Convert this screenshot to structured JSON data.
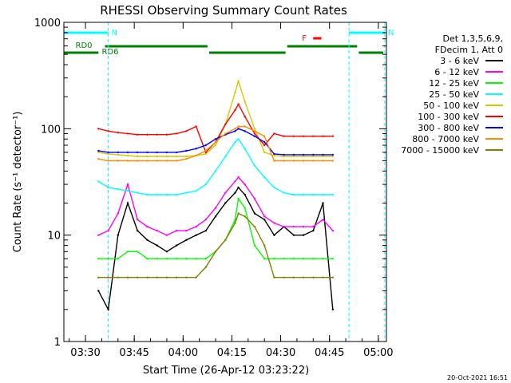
{
  "chart_data": {
    "type": "line",
    "title": "RHESSI Observing Summary Count Rates",
    "xlabel": "Start Time (26-Apr-12 03:23:22)",
    "ylabel": "Count Rate (s⁻¹ detector⁻¹)",
    "y_scale": "log",
    "ylim": [
      1,
      1000
    ],
    "xlim": [
      "03:23:22",
      "05:02:30"
    ],
    "x_ticks": [
      "03:30",
      "03:45",
      "04:00",
      "04:15",
      "04:30",
      "04:45",
      "05:00"
    ],
    "y_ticks": [
      "1",
      "10",
      "100",
      "1000"
    ],
    "legend_header": [
      "Det 1,3,5,6,9,",
      "FDecim 1, Att 0"
    ],
    "legend_position": "right",
    "x": [
      "03:34",
      "03:37",
      "03:40",
      "03:43",
      "03:46",
      "03:49",
      "03:52",
      "03:55",
      "03:58",
      "04:01",
      "04:04",
      "04:07",
      "04:10",
      "04:13",
      "04:16",
      "04:17",
      "04:19",
      "04:22",
      "04:25",
      "04:28",
      "04:31",
      "04:34",
      "04:37",
      "04:40",
      "04:43",
      "04:46"
    ],
    "series": [
      {
        "name": "3 - 6 keV",
        "color": "#000000",
        "values": [
          3,
          2,
          10,
          20,
          11,
          9,
          8,
          7,
          8,
          9,
          10,
          11,
          15,
          20,
          25,
          28,
          24,
          16,
          14,
          10,
          12,
          10,
          10,
          11,
          20,
          2
        ]
      },
      {
        "name": "6 - 12 keV",
        "color": "#ff00ff",
        "values": [
          10,
          11,
          16,
          30,
          14,
          12,
          11,
          10,
          11,
          11,
          12,
          14,
          18,
          25,
          32,
          35,
          30,
          22,
          15,
          13,
          12,
          12,
          12,
          12,
          14,
          11
        ]
      },
      {
        "name": "12 - 25 keV",
        "color": "#00ff00",
        "values": [
          6,
          6,
          6,
          7,
          7,
          6,
          6,
          6,
          6,
          6,
          6,
          6,
          7,
          9,
          14,
          22,
          18,
          8,
          6,
          6,
          6,
          6,
          6,
          6,
          6,
          6
        ]
      },
      {
        "name": "25 - 50 keV",
        "color": "#00ffff",
        "values": [
          32,
          28,
          27,
          26,
          25,
          24,
          24,
          24,
          24,
          25,
          26,
          30,
          40,
          55,
          75,
          80,
          65,
          45,
          35,
          28,
          25,
          24,
          24,
          24,
          24,
          24
        ]
      },
      {
        "name": "50 - 100 keV",
        "color": "#d4c800",
        "values": [
          60,
          58,
          57,
          56,
          55,
          55,
          55,
          55,
          55,
          55,
          56,
          58,
          70,
          110,
          220,
          280,
          180,
          100,
          60,
          56,
          55,
          55,
          55,
          55,
          55,
          55
        ]
      },
      {
        "name": "100 - 300 keV",
        "color": "#ff0000",
        "values": [
          100,
          95,
          92,
          90,
          88,
          88,
          88,
          88,
          90,
          95,
          105,
          60,
          75,
          110,
          150,
          170,
          130,
          90,
          70,
          90,
          85,
          85,
          85,
          85,
          85,
          85
        ]
      },
      {
        "name": "300 - 800 keV",
        "color": "#0000ff",
        "values": [
          62,
          60,
          60,
          60,
          60,
          60,
          60,
          60,
          60,
          62,
          65,
          70,
          80,
          88,
          95,
          100,
          95,
          85,
          75,
          58,
          57,
          57,
          57,
          57,
          57,
          57
        ]
      },
      {
        "name": "800 - 7000 keV",
        "color": "#ff8c00",
        "values": [
          52,
          50,
          50,
          50,
          50,
          50,
          50,
          50,
          50,
          52,
          56,
          62,
          75,
          90,
          100,
          105,
          105,
          95,
          85,
          50,
          50,
          50,
          50,
          50,
          50,
          50
        ]
      },
      {
        "name": "7000 - 15000 keV",
        "color": "#808000",
        "values": [
          4,
          4,
          4,
          4,
          4,
          4,
          4,
          4,
          4,
          4,
          4,
          5,
          7,
          9,
          13,
          16,
          15,
          12,
          8,
          4,
          4,
          4,
          4,
          4,
          4,
          4
        ]
      }
    ],
    "flags": [
      {
        "label": "N",
        "color": "#00ffff",
        "start": "03:23:30",
        "end": "03:37:00"
      },
      {
        "label": "N",
        "color": "#00ffff",
        "start": "04:51:00",
        "end": "05:02:00"
      },
      {
        "label": "F",
        "color": "#ff0000",
        "start": "04:40:00",
        "end": "04:42:30"
      },
      {
        "label": "RD0",
        "color": "#008000",
        "start": "03:23:30",
        "end": "03:34:00"
      },
      {
        "label": "RD6",
        "color": "#008000",
        "start": "03:36:00",
        "end": "04:07:30"
      },
      {
        "label": "",
        "color": "#008000",
        "start": "04:08:00",
        "end": "04:31:30"
      },
      {
        "label": "",
        "color": "#008000",
        "start": "04:32:00",
        "end": "04:53:30"
      },
      {
        "label": "",
        "color": "#008000",
        "start": "04:54:00",
        "end": "05:01:30"
      }
    ],
    "grid": false
  },
  "footer": {
    "date_stamp": "20-Oct-2021 16:51"
  }
}
